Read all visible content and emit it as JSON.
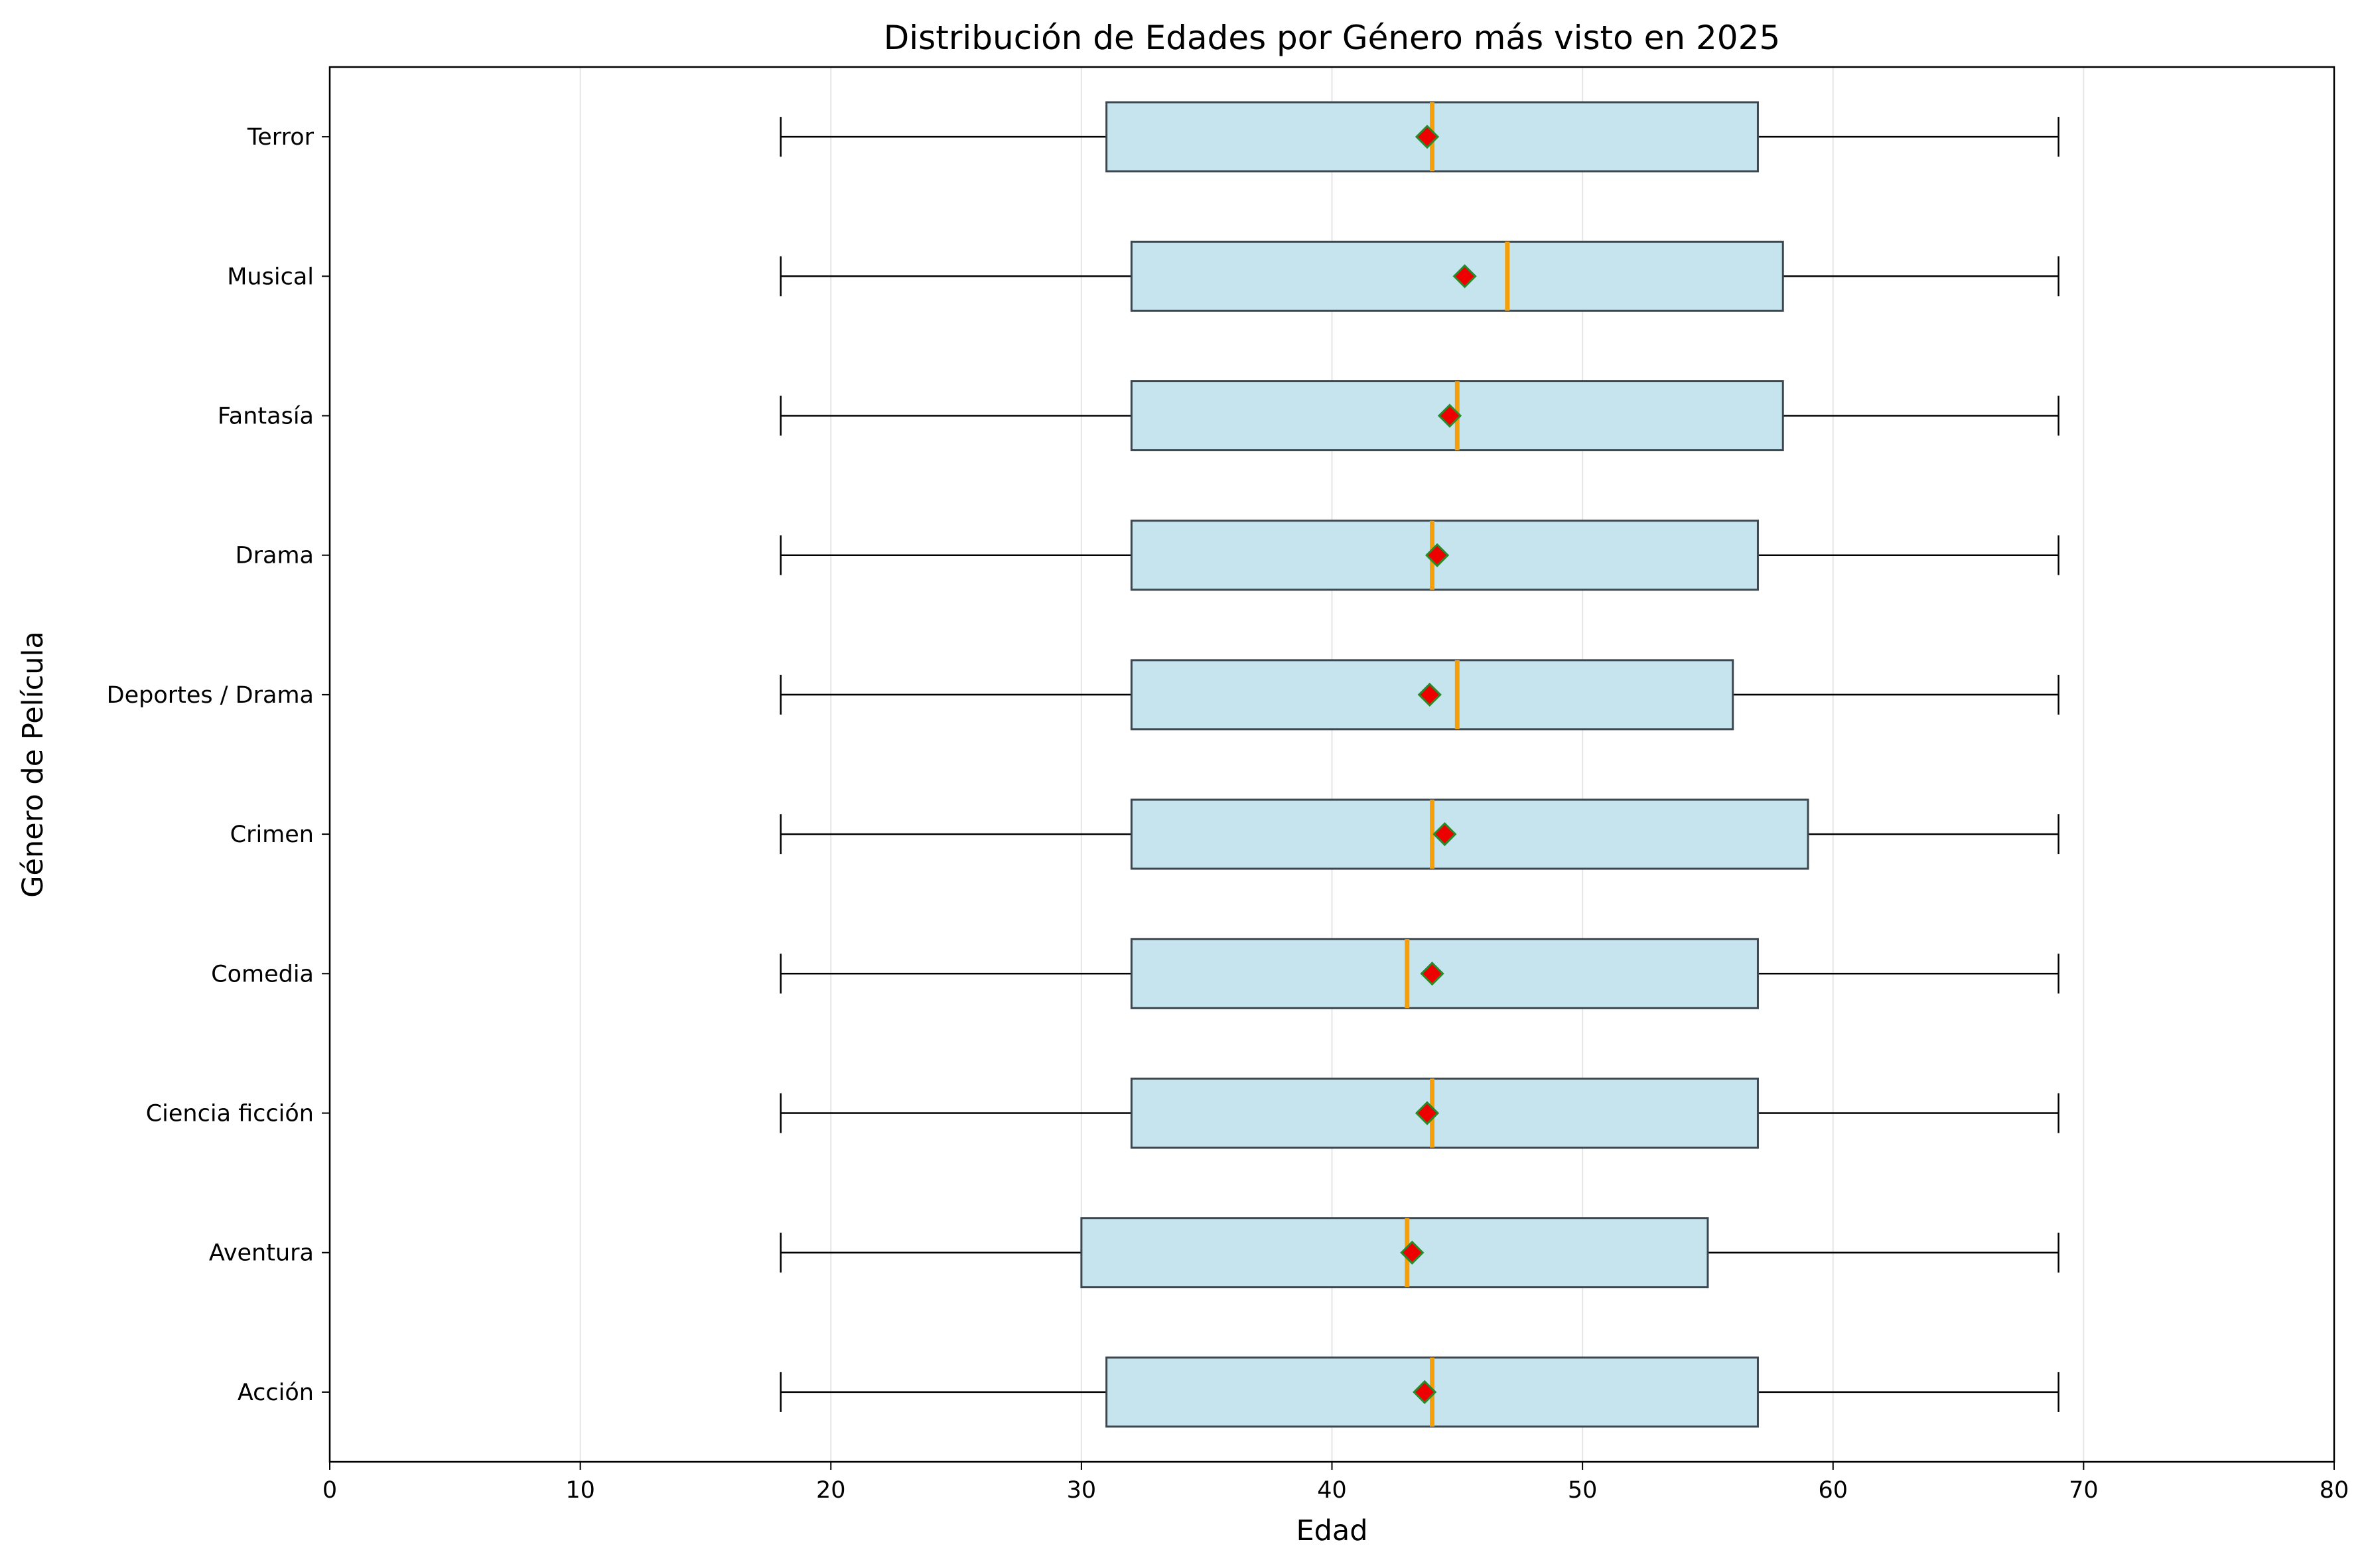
{
  "chart_data": {
    "type": "boxplot",
    "orientation": "horizontal",
    "title": "Distribución de Edades por Género más visto en 2025",
    "xlabel": "Edad",
    "ylabel": "Género de Película",
    "xlim": [
      0,
      80
    ],
    "xticks": [
      0,
      10,
      20,
      30,
      40,
      50,
      60,
      70,
      80
    ],
    "grid": "vertical, light gray",
    "colors": {
      "box_fill": "#c5e4ee",
      "box_edge": "#3c4750",
      "median": "#f5a00a",
      "mean_marker": "#ee0000",
      "mean_marker_edge": "#2a8a2a",
      "whisker": "#000000",
      "grid": "#e6e6e6"
    },
    "categories": [
      "Acción",
      "Aventura",
      "Ciencia ficción",
      "Comedia",
      "Crimen",
      "Deportes / Drama",
      "Drama",
      "Fantasía",
      "Musical",
      "Terror"
    ],
    "boxes": [
      {
        "label": "Acción",
        "min": 18,
        "q1": 31,
        "median": 44,
        "q3": 57,
        "max": 69,
        "mean": 43.7
      },
      {
        "label": "Aventura",
        "min": 18,
        "q1": 30,
        "median": 43,
        "q3": 55,
        "max": 69,
        "mean": 43.2
      },
      {
        "label": "Ciencia ficción",
        "min": 18,
        "q1": 32,
        "median": 44,
        "q3": 57,
        "max": 69,
        "mean": 43.8
      },
      {
        "label": "Comedia",
        "min": 18,
        "q1": 32,
        "median": 43,
        "q3": 57,
        "max": 69,
        "mean": 44.0
      },
      {
        "label": "Crimen",
        "min": 18,
        "q1": 32,
        "median": 44,
        "q3": 59,
        "max": 69,
        "mean": 44.5
      },
      {
        "label": "Deportes / Drama",
        "min": 18,
        "q1": 32,
        "median": 45,
        "q3": 56,
        "max": 69,
        "mean": 43.9
      },
      {
        "label": "Drama",
        "min": 18,
        "q1": 32,
        "median": 44,
        "q3": 57,
        "max": 69,
        "mean": 44.2
      },
      {
        "label": "Fantasía",
        "min": 18,
        "q1": 32,
        "median": 45,
        "q3": 58,
        "max": 69,
        "mean": 44.7
      },
      {
        "label": "Musical",
        "min": 18,
        "q1": 32,
        "median": 47,
        "q3": 58,
        "max": 69,
        "mean": 45.3
      },
      {
        "label": "Terror",
        "min": 18,
        "q1": 31,
        "median": 44,
        "q3": 57,
        "max": 69,
        "mean": 43.8
      }
    ]
  }
}
